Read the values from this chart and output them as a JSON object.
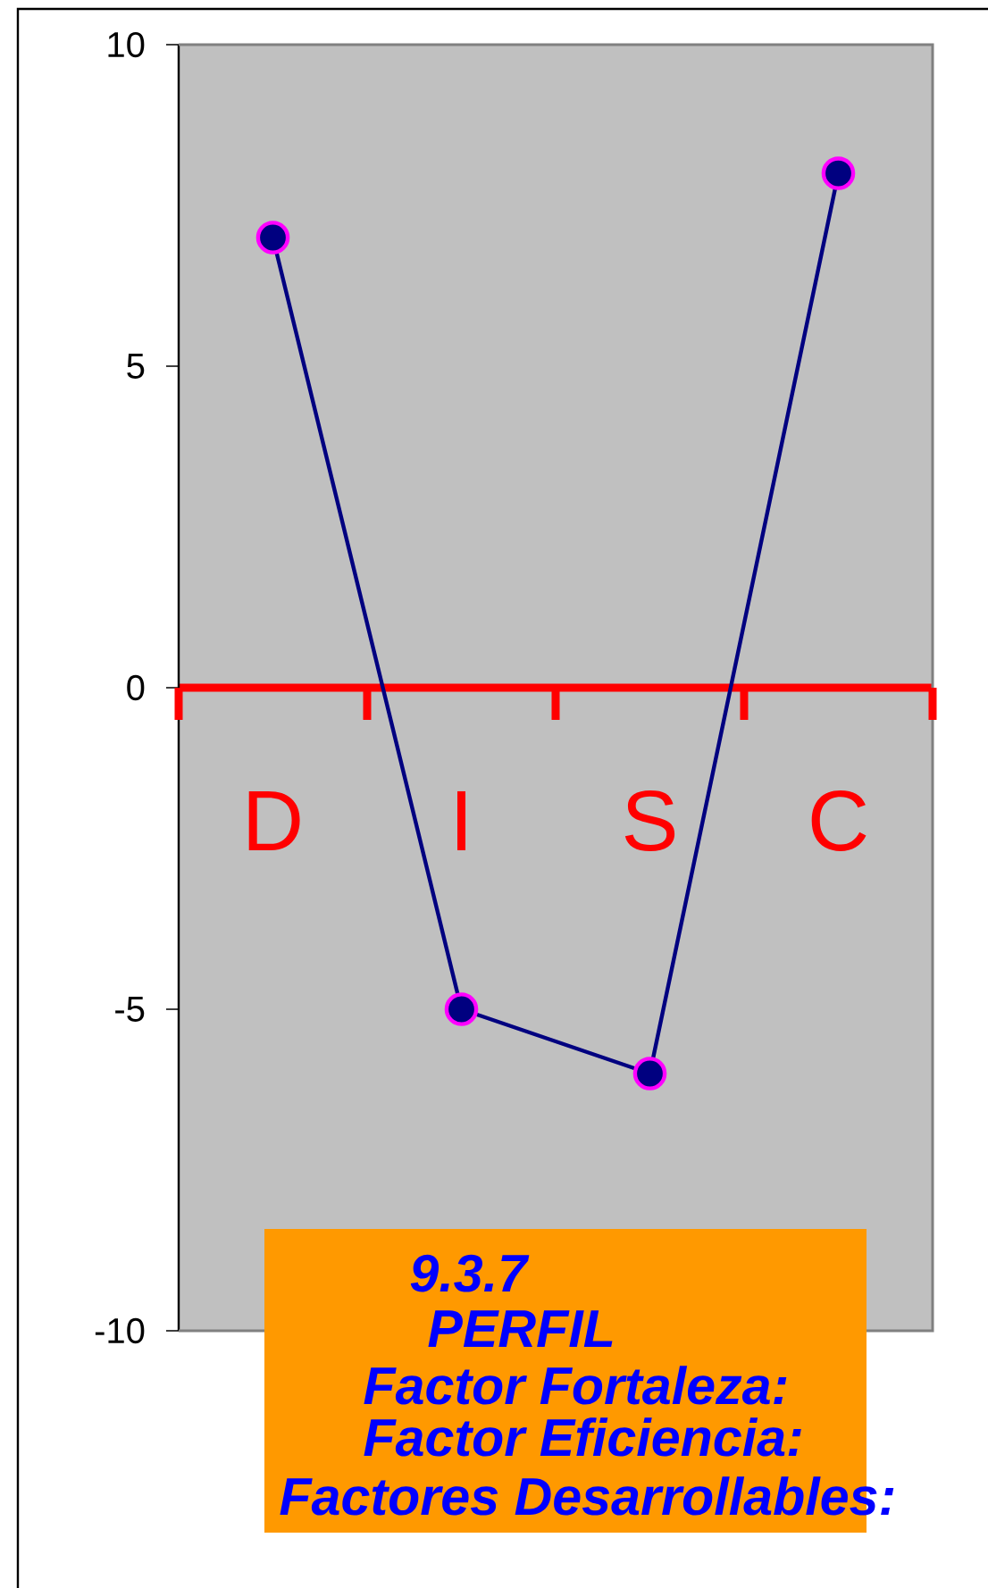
{
  "chart_data": {
    "type": "line",
    "categories": [
      "D",
      "I",
      "S",
      "C"
    ],
    "series": [
      {
        "color": "#000080",
        "values": [
          7,
          -5,
          -6,
          8
        ]
      }
    ],
    "ylim": [
      -10,
      10
    ],
    "yticks": [
      -10,
      -5,
      0,
      5,
      10
    ],
    "marker": "circle",
    "line_style": "solid",
    "annotations": [
      "9.3.7",
      "PERFIL",
      "Factor Fortaleza:",
      "Factor Eficiencia:",
      "Factores Desarrollables:"
    ]
  }
}
